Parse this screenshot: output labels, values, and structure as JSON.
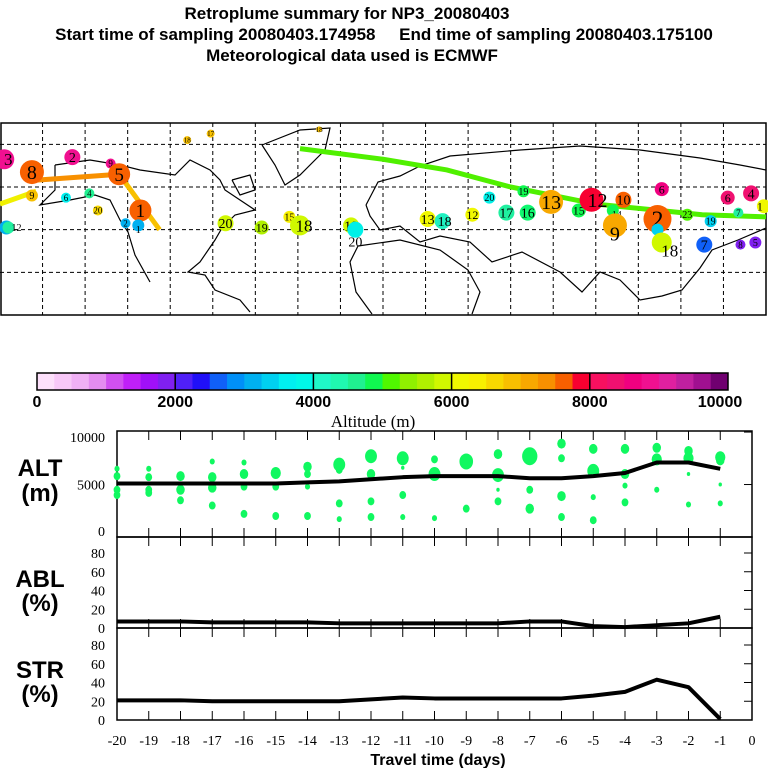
{
  "header": {
    "title": "Retroplume summary for NP3_20080403",
    "line2": "Start time of sampling 20080403.174958     End time of sampling 20080403.175100",
    "line3": "Meteorological data used is ECMWF"
  },
  "colorbar": {
    "label": "Altitude (m)",
    "ticks": [
      "0",
      "2000",
      "4000",
      "6000",
      "8000",
      "10000"
    ],
    "range": [
      0,
      10000
    ],
    "colors": [
      "#fde0fb",
      "#f8c8f8",
      "#f0b0f5",
      "#e48cf0",
      "#d050f0",
      "#c020f8",
      "#a010f8",
      "#8020f0",
      "#5020f8",
      "#2010f8",
      "#1060f8",
      "#0090f8",
      "#00b0f0",
      "#00d0f0",
      "#00f0f0",
      "#00f8e8",
      "#20f8c8",
      "#20f8b0",
      "#20f090",
      "#10f850",
      "#50f800",
      "#90f000",
      "#b0f000",
      "#d0f800",
      "#f0f800",
      "#f8f000",
      "#f8d800",
      "#f8c000",
      "#f8a800",
      "#f89000",
      "#f86000",
      "#f80030",
      "#f81060",
      "#f01070",
      "#f00080",
      "#f01090",
      "#e020a0",
      "#c020a0",
      "#a01090",
      "#700070"
    ]
  },
  "map": {
    "lon_range": [
      -180,
      180
    ],
    "lat_range": [
      0,
      90
    ],
    "trails": [
      {
        "color": "#50f000",
        "points": [
          [
            -39,
            78
          ],
          [
            0,
            73
          ],
          [
            30,
            68
          ],
          [
            60,
            60
          ],
          [
            100,
            52
          ],
          [
            150,
            47
          ],
          [
            180,
            46
          ]
        ]
      },
      {
        "color": "#f89000",
        "points": [
          [
            -166,
            63
          ],
          [
            -124,
            66
          ]
        ]
      },
      {
        "color": "#f8c000",
        "points": [
          [
            -124,
            66
          ],
          [
            -105,
            40
          ]
        ]
      },
      {
        "color": "#f0f000",
        "points": [
          [
            -180,
            52
          ],
          [
            -163,
            58
          ]
        ]
      }
    ],
    "markers": [
      {
        "label": "3",
        "lon": -178,
        "lat": 73,
        "color": "#f01090",
        "r": 10
      },
      {
        "label": "8",
        "lon": -165,
        "lat": 67,
        "color": "#f86000",
        "r": 12
      },
      {
        "label": "2",
        "lon": -146,
        "lat": 74,
        "color": "#f01090",
        "r": 8
      },
      {
        "label": "9",
        "lon": -128,
        "lat": 71,
        "color": "#f01090",
        "r": 5
      },
      {
        "label": "5",
        "lon": -124,
        "lat": 66,
        "color": "#f86000",
        "r": 11
      },
      {
        "label": "1",
        "lon": -114,
        "lat": 49,
        "color": "#f86000",
        "r": 11
      },
      {
        "label": "1",
        "lon": -115,
        "lat": 42,
        "color": "#00b0f0",
        "r": 6
      },
      {
        "label": "2",
        "lon": -121,
        "lat": 43,
        "color": "#00b0f0",
        "r": 5
      },
      {
        "label": "4",
        "lon": -177,
        "lat": 41,
        "color": "#00b0f0",
        "r": 7
      },
      {
        "label": "20",
        "lon": -134,
        "lat": 49,
        "color": "#f8d800",
        "r": 5
      },
      {
        "label": "6",
        "lon": -149,
        "lat": 55,
        "color": "#00f0f0",
        "r": 5
      },
      {
        "label": "4",
        "lon": -138,
        "lat": 57,
        "color": "#20f090",
        "r": 5
      },
      {
        "label": "9",
        "lon": -165,
        "lat": 56,
        "color": "#f8c000",
        "r": 6
      },
      {
        "label": "20",
        "lon": -74,
        "lat": 43,
        "color": "#d0f800",
        "r": 8
      },
      {
        "label": "19",
        "lon": -57,
        "lat": 41,
        "color": "#b0f000",
        "r": 7
      },
      {
        "label": "15",
        "lon": -44,
        "lat": 46,
        "color": "#f8f000",
        "r": 6
      },
      {
        "label": "18",
        "lon": -39,
        "lat": 42,
        "color": "#d0f800",
        "r": 10
      },
      {
        "label": "19",
        "lon": -15,
        "lat": 42,
        "color": "#d0f800",
        "r": 8
      },
      {
        "label": "20",
        "lon": -13,
        "lat": 40,
        "color": "#00f0e8",
        "r": 8
      },
      {
        "label": "18",
        "lon": -92,
        "lat": 82,
        "color": "#f8c000",
        "r": 4
      },
      {
        "label": "17",
        "lon": -81,
        "lat": 85,
        "color": "#f8c000",
        "r": 4
      },
      {
        "label": "18",
        "lon": -30,
        "lat": 87,
        "color": "#f8c000",
        "r": 3
      },
      {
        "label": "12",
        "lon": -176,
        "lat": 41,
        "color": "#20f0a0",
        "r": 6
      },
      {
        "label": "13",
        "lon": 21,
        "lat": 45,
        "color": "#f0f800",
        "r": 8
      },
      {
        "label": "18",
        "lon": 28,
        "lat": 44,
        "color": "#20f0c0",
        "r": 8
      },
      {
        "label": "12",
        "lon": 42,
        "lat": 47,
        "color": "#f0f800",
        "r": 7
      },
      {
        "label": "20",
        "lon": 50,
        "lat": 55,
        "color": "#00f0e8",
        "r": 6
      },
      {
        "label": "17",
        "lon": 58,
        "lat": 48,
        "color": "#20f0a0",
        "r": 8
      },
      {
        "label": "19",
        "lon": 66,
        "lat": 58,
        "color": "#10f850",
        "r": 6
      },
      {
        "label": "16",
        "lon": 68,
        "lat": 48,
        "color": "#10f870",
        "r": 8
      },
      {
        "label": "13",
        "lon": 79,
        "lat": 53,
        "color": "#f8a800",
        "r": 12
      },
      {
        "label": "15",
        "lon": 92,
        "lat": 49,
        "color": "#10f850",
        "r": 7
      },
      {
        "label": "12",
        "lon": 98,
        "lat": 54,
        "color": "#f80030",
        "r": 12
      },
      {
        "label": "10",
        "lon": 113,
        "lat": 54,
        "color": "#f86000",
        "r": 8
      },
      {
        "label": "14",
        "lon": 108,
        "lat": 49,
        "color": "#10f850",
        "r": 6
      },
      {
        "label": "9",
        "lon": 109,
        "lat": 42,
        "color": "#f8a800",
        "r": 12
      },
      {
        "label": "6",
        "lon": 131,
        "lat": 59,
        "color": "#f00080",
        "r": 7
      },
      {
        "label": "2",
        "lon": 129,
        "lat": 45,
        "color": "#f86000",
        "r": 14
      },
      {
        "label": "8",
        "lon": 129,
        "lat": 40,
        "color": "#00d0f0",
        "r": 6
      },
      {
        "label": "18",
        "lon": 131,
        "lat": 34,
        "color": "#d0f800",
        "r": 10
      },
      {
        "label": "23",
        "lon": 143,
        "lat": 47,
        "color": "#50f800",
        "r": 6
      },
      {
        "label": "19",
        "lon": 154,
        "lat": 44,
        "color": "#00d0f0",
        "r": 6
      },
      {
        "label": "7",
        "lon": 151,
        "lat": 33,
        "color": "#1060f8",
        "r": 8
      },
      {
        "label": "6",
        "lon": 162,
        "lat": 55,
        "color": "#f01070",
        "r": 7
      },
      {
        "label": "4",
        "lon": 173,
        "lat": 57,
        "color": "#f01070",
        "r": 8
      },
      {
        "label": "7",
        "lon": 167,
        "lat": 48,
        "color": "#20f0a0",
        "r": 5
      },
      {
        "label": "5",
        "lon": 175,
        "lat": 34,
        "color": "#8020f0",
        "r": 6
      },
      {
        "label": "8",
        "lon": 168,
        "lat": 33,
        "color": "#8020f0",
        "r": 5
      },
      {
        "label": "1",
        "lon": 179,
        "lat": 51,
        "color": "#f0f800",
        "r": 7
      }
    ]
  },
  "xaxis": {
    "label": "Travel time (days)",
    "range": [
      -20,
      0
    ],
    "ticks": [
      "-20",
      "-19",
      "-18",
      "-17",
      "-16",
      "-15",
      "-14",
      "-13",
      "-12",
      "-11",
      "-10",
      "-9",
      "-8",
      "-7",
      "-6",
      "-5",
      "-4",
      "-3",
      "-2",
      "-1",
      "0"
    ]
  },
  "chart_data": [
    {
      "type": "line",
      "panel": "ALT",
      "ylabel_line1": "ALT",
      "ylabel_line2": "(m)",
      "ylim": [
        0,
        10000
      ],
      "yticks": [
        "0",
        "5000",
        "10000"
      ],
      "x": [
        -20,
        -19,
        -18,
        -17,
        -16,
        -15,
        -14,
        -13,
        -12,
        -11,
        -10,
        -9,
        -8,
        -7,
        -6,
        -5,
        -4,
        -3,
        -2,
        -1
      ],
      "values": [
        5100,
        5100,
        5100,
        5100,
        5100,
        5100,
        5200,
        5300,
        5500,
        5700,
        5800,
        5800,
        5800,
        5600,
        5600,
        5800,
        6100,
        7100,
        7100,
        6500
      ],
      "scatter_color": "#10f860",
      "scatter": [
        [
          -20,
          6500,
          3
        ],
        [
          -20,
          5800,
          4
        ],
        [
          -20,
          4500,
          4
        ],
        [
          -20,
          4000,
          4
        ],
        [
          -19,
          6500,
          3
        ],
        [
          -19,
          5700,
          4
        ],
        [
          -19,
          4500,
          4
        ],
        [
          -19,
          4200,
          4
        ],
        [
          -18,
          5800,
          5
        ],
        [
          -18,
          4500,
          5
        ],
        [
          -18,
          3500,
          4
        ],
        [
          -17,
          7200,
          3
        ],
        [
          -17,
          5700,
          5
        ],
        [
          -17,
          4700,
          5
        ],
        [
          -17,
          3000,
          4
        ],
        [
          -16,
          7100,
          3
        ],
        [
          -16,
          6000,
          5
        ],
        [
          -16,
          4800,
          4
        ],
        [
          -16,
          2200,
          4
        ],
        [
          -15,
          6100,
          6
        ],
        [
          -15,
          4800,
          4
        ],
        [
          -15,
          2000,
          4
        ],
        [
          -14,
          6700,
          5
        ],
        [
          -14,
          6000,
          4
        ],
        [
          -14,
          4800,
          3
        ],
        [
          -14,
          2000,
          4
        ],
        [
          -13,
          6900,
          7
        ],
        [
          -13,
          6400,
          4
        ],
        [
          -13,
          3200,
          4
        ],
        [
          -13,
          1700,
          3
        ],
        [
          -12,
          7700,
          7
        ],
        [
          -12,
          6000,
          5
        ],
        [
          -12,
          3400,
          4
        ],
        [
          -12,
          1900,
          4
        ],
        [
          -11,
          7500,
          7
        ],
        [
          -11,
          6600,
          2
        ],
        [
          -11,
          4000,
          4
        ],
        [
          -11,
          1900,
          3
        ],
        [
          -10,
          7400,
          4
        ],
        [
          -10,
          6000,
          7
        ],
        [
          -10,
          1800,
          3
        ],
        [
          -9,
          7200,
          8
        ],
        [
          -9,
          2700,
          4
        ],
        [
          -8,
          7900,
          5
        ],
        [
          -8,
          5900,
          7
        ],
        [
          -8,
          4500,
          2
        ],
        [
          -8,
          3400,
          4
        ],
        [
          -7,
          7700,
          9
        ],
        [
          -7,
          4500,
          4
        ],
        [
          -7,
          2700,
          5
        ],
        [
          -6,
          8900,
          5
        ],
        [
          -6,
          7500,
          4
        ],
        [
          -6,
          3900,
          5
        ],
        [
          -6,
          1900,
          4
        ],
        [
          -5,
          8400,
          5
        ],
        [
          -5,
          6300,
          7
        ],
        [
          -5,
          3800,
          3
        ],
        [
          -5,
          1600,
          4
        ],
        [
          -4,
          8400,
          5
        ],
        [
          -4,
          6000,
          5
        ],
        [
          -4,
          4900,
          3
        ],
        [
          -4,
          3300,
          4
        ],
        [
          -3,
          8500,
          5
        ],
        [
          -3,
          7400,
          6
        ],
        [
          -3,
          4500,
          3
        ],
        [
          -2,
          8200,
          5
        ],
        [
          -2,
          7500,
          6
        ],
        [
          -2,
          6000,
          2
        ],
        [
          -2,
          3100,
          3
        ],
        [
          -1,
          7600,
          6
        ],
        [
          -1,
          7300,
          5
        ],
        [
          -1,
          5000,
          2
        ],
        [
          -1,
          3200,
          3
        ]
      ]
    },
    {
      "type": "line",
      "panel": "ABL",
      "ylabel_line1": "ABL",
      "ylabel_line2": "(%)",
      "ylim": [
        0,
        100
      ],
      "yticks": [
        "0",
        "20",
        "40",
        "60",
        "80"
      ],
      "x": [
        -20,
        -19,
        -18,
        -17,
        -16,
        -15,
        -14,
        -13,
        -12,
        -11,
        -10,
        -9,
        -8,
        -7,
        -6,
        -5,
        -4,
        -3,
        -2,
        -1
      ],
      "values": [
        7,
        7,
        7,
        6,
        6,
        6,
        6,
        5,
        5,
        5,
        5,
        5,
        5,
        7,
        7,
        2,
        1,
        3,
        5,
        12
      ]
    },
    {
      "type": "line",
      "panel": "STR",
      "ylabel_line1": "STR",
      "ylabel_line2": "(%)",
      "ylim": [
        0,
        100
      ],
      "yticks": [
        "0",
        "20",
        "40",
        "60",
        "80"
      ],
      "x": [
        -20,
        -19,
        -18,
        -17,
        -16,
        -15,
        -14,
        -13,
        -12,
        -11,
        -10,
        -9,
        -8,
        -7,
        -6,
        -5,
        -4,
        -3,
        -2,
        -1
      ],
      "values": [
        21,
        21,
        21,
        20,
        20,
        20,
        20,
        20,
        22,
        24,
        23,
        23,
        23,
        23,
        23,
        26,
        30,
        43,
        35,
        1
      ]
    }
  ]
}
